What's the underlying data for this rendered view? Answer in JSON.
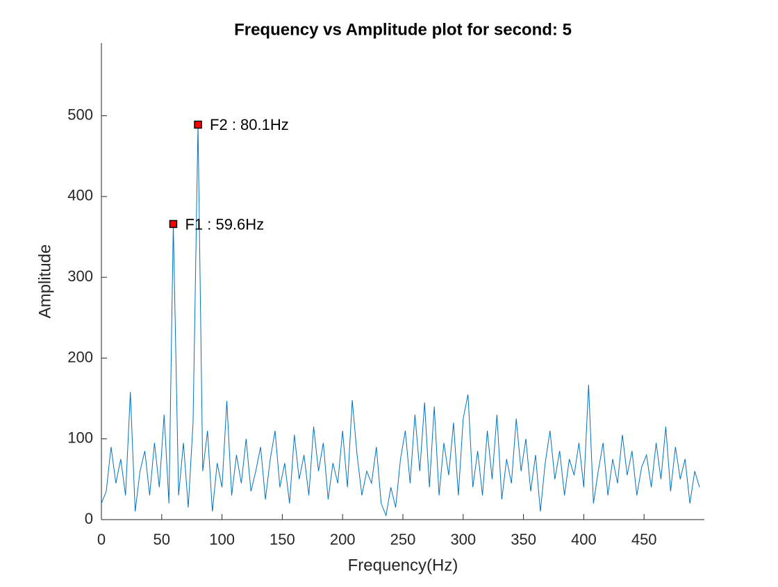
{
  "chart_data": {
    "type": "line",
    "title": "Frequency vs Amplitude plot for second: 5",
    "x_label": "Frequency(Hz)",
    "y_label": "Amplitude",
    "x": [
      0,
      4,
      8,
      12,
      16,
      20,
      24,
      28,
      32,
      36,
      40,
      44,
      48,
      52,
      56,
      59.6,
      64,
      68,
      72,
      76,
      80.1,
      84,
      88,
      92,
      96,
      100,
      104,
      108,
      112,
      116,
      120,
      124,
      128,
      132,
      136,
      140,
      144,
      148,
      152,
      156,
      160,
      164,
      168,
      172,
      176,
      180,
      184,
      188,
      192,
      196,
      200,
      204,
      208,
      212,
      216,
      220,
      224,
      228,
      232,
      236,
      240,
      244,
      248,
      252,
      256,
      260,
      264,
      268,
      272,
      276,
      280,
      284,
      288,
      292,
      296,
      300,
      304,
      308,
      312,
      316,
      320,
      324,
      328,
      332,
      336,
      340,
      344,
      348,
      352,
      356,
      360,
      364,
      368,
      372,
      376,
      380,
      384,
      388,
      392,
      396,
      400,
      404,
      408,
      412,
      416,
      420,
      424,
      428,
      432,
      436,
      440,
      444,
      448,
      452,
      456,
      460,
      464,
      468,
      472,
      476,
      480,
      484,
      488,
      492,
      496
    ],
    "series": [
      {
        "name": "Amplitude",
        "color": "#0072BD",
        "values": [
          20,
          35,
          90,
          45,
          75,
          30,
          158,
          10,
          60,
          85,
          30,
          95,
          40,
          130,
          20,
          366,
          30,
          95,
          15,
          120,
          489,
          60,
          110,
          10,
          70,
          40,
          147,
          30,
          80,
          45,
          100,
          35,
          60,
          90,
          25,
          75,
          110,
          40,
          70,
          20,
          105,
          50,
          80,
          30,
          115,
          60,
          95,
          25,
          70,
          45,
          110,
          40,
          148,
          80,
          30,
          60,
          45,
          90,
          20,
          5,
          40,
          15,
          75,
          110,
          45,
          130,
          60,
          145,
          40,
          140,
          30,
          95,
          55,
          120,
          30,
          125,
          155,
          40,
          85,
          30,
          110,
          50,
          130,
          25,
          75,
          45,
          125,
          60,
          100,
          35,
          80,
          10,
          70,
          110,
          50,
          85,
          30,
          75,
          55,
          95,
          40,
          167,
          20,
          60,
          95,
          30,
          75,
          45,
          105,
          55,
          85,
          30,
          65,
          80,
          40,
          95,
          50,
          115,
          35,
          90,
          50,
          75,
          20,
          60,
          40
        ]
      }
    ],
    "peaks": [
      {
        "label": "F1 : 59.6Hz",
        "x": 59.6,
        "y": 366,
        "color": "#ff0000"
      },
      {
        "label": "F2 : 80.1Hz",
        "x": 80.1,
        "y": 489,
        "color": "#ff0000"
      }
    ],
    "xlim": [
      0,
      500
    ],
    "ylim": [
      0,
      590
    ],
    "xticks": [
      0,
      50,
      100,
      150,
      200,
      250,
      300,
      350,
      400,
      450
    ],
    "yticks": [
      0,
      100,
      200,
      300,
      400,
      500
    ]
  }
}
